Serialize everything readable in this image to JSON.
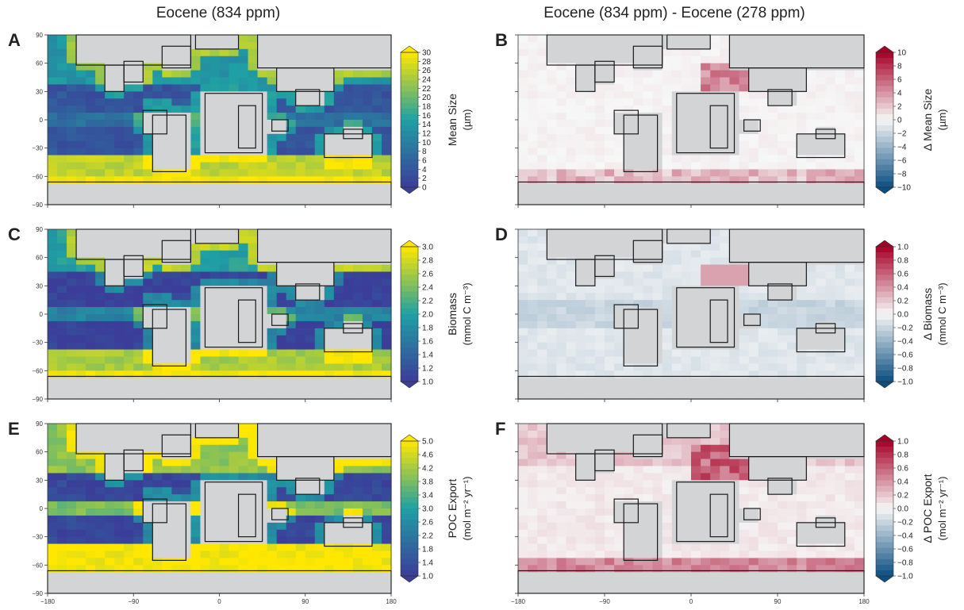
{
  "titles": {
    "left": "Eocene (834 ppm)",
    "right": "Eocene (834 ppm) - Eocene (278 ppm)"
  },
  "lat_ticks": [
    "90",
    "60",
    "30",
    "0",
    "−30",
    "−60",
    "−90"
  ],
  "lon_ticks": [
    "−180",
    "−90",
    "0",
    "90",
    "180"
  ],
  "colors": {
    "land": "#d3d4d6",
    "coast": "#1a1a1a",
    "seq_low": "#3b3d99",
    "seq_mid": "#1fa0a4",
    "seq_high": "#ffe700",
    "div_low": "#0b4f82",
    "div_zero": "#f7f7f7",
    "div_high": "#a50026"
  },
  "chart_data": [
    {
      "panel": "A",
      "type": "heatmap",
      "scale": "sequential",
      "title": "Eocene (834 ppm)",
      "xlim": [
        -180,
        180
      ],
      "ylim": [
        -90,
        90
      ],
      "colorbar": {
        "label_line1": "Mean Size",
        "label_line2": "(µm)",
        "ticks": [
          "30",
          "28",
          "26",
          "24",
          "22",
          "20",
          "18",
          "16",
          "14",
          "12",
          "10",
          "8",
          "6",
          "4",
          "2",
          "0"
        ],
        "range": [
          0,
          30
        ]
      },
      "field_summary": {
        "tropics": 6,
        "subtropical_gyres": 3,
        "southern_ocean": 26,
        "north_pacific_high_lat": 14
      }
    },
    {
      "panel": "B",
      "type": "heatmap",
      "scale": "diverging",
      "title": "Eocene (834 ppm) - Eocene (278 ppm)",
      "xlim": [
        -180,
        180
      ],
      "ylim": [
        -90,
        90
      ],
      "colorbar": {
        "label_line1": "Δ Mean Size",
        "label_line2": "(µm)",
        "ticks": [
          "10",
          "8",
          "6",
          "4",
          "2",
          "0",
          "−2",
          "−4",
          "−6",
          "−8",
          "−10"
        ],
        "range": [
          -10,
          10
        ]
      },
      "field_summary": {
        "open_ocean": 0,
        "southern_ocean": 3,
        "north_atlantic": 5
      }
    },
    {
      "panel": "C",
      "type": "heatmap",
      "scale": "sequential",
      "xlim": [
        -180,
        180
      ],
      "ylim": [
        -90,
        90
      ],
      "colorbar": {
        "label_line1": "Biomass",
        "label_line2": "(mmol C m⁻³)",
        "ticks": [
          "3.0",
          "2.8",
          "2.6",
          "2.4",
          "2.2",
          "2.0",
          "1.8",
          "1.6",
          "1.4",
          "1.2",
          "1.0"
        ],
        "range": [
          1.0,
          3.0
        ]
      },
      "field_summary": {
        "subtropical_gyres": 1.0,
        "coasts": 2.8,
        "southern_ocean": 2.7
      }
    },
    {
      "panel": "D",
      "type": "heatmap",
      "scale": "diverging",
      "xlim": [
        -180,
        180
      ],
      "ylim": [
        -90,
        90
      ],
      "colorbar": {
        "label_line1": "Δ Biomass",
        "label_line2": "(mmol C m⁻³)",
        "ticks": [
          "1.0",
          "0.8",
          "0.6",
          "0.4",
          "0.2",
          "0.0",
          "−0.2",
          "−0.4",
          "−0.6",
          "−0.8",
          "−1.0"
        ],
        "range": [
          -1.0,
          1.0
        ]
      },
      "field_summary": {
        "open_ocean": -0.1,
        "north_atlantic": 0.3
      }
    },
    {
      "panel": "E",
      "type": "heatmap",
      "scale": "sequential",
      "xlim": [
        -180,
        180
      ],
      "ylim": [
        -90,
        90
      ],
      "colorbar": {
        "label_line1": "POC Export",
        "label_line2": "(mol m⁻² yr⁻¹)",
        "ticks": [
          "5.0",
          "4.6",
          "4.2",
          "3.8",
          "3.4",
          "3.0",
          "2.6",
          "2.2",
          "1.8",
          "1.4",
          "1.0"
        ],
        "range": [
          1.0,
          5.0
        ]
      },
      "field_summary": {
        "subtropical_gyres": 1.0,
        "equatorial": 4.0,
        "southern_ocean": 5.0
      }
    },
    {
      "panel": "F",
      "type": "heatmap",
      "scale": "diverging",
      "xlim": [
        -180,
        180
      ],
      "ylim": [
        -90,
        90
      ],
      "colorbar": {
        "label_line1": "Δ POC Export",
        "label_line2": "(mol m⁻² yr⁻¹)",
        "ticks": [
          "1.0",
          "0.8",
          "0.6",
          "0.4",
          "0.2",
          "0.0",
          "−0.2",
          "−0.4",
          "−0.6",
          "−0.8",
          "−1.0"
        ],
        "range": [
          -1.0,
          1.0
        ]
      },
      "field_summary": {
        "open_ocean": 0.05,
        "north_atlantic": 1.0,
        "southern_ocean": 0.5
      }
    }
  ]
}
